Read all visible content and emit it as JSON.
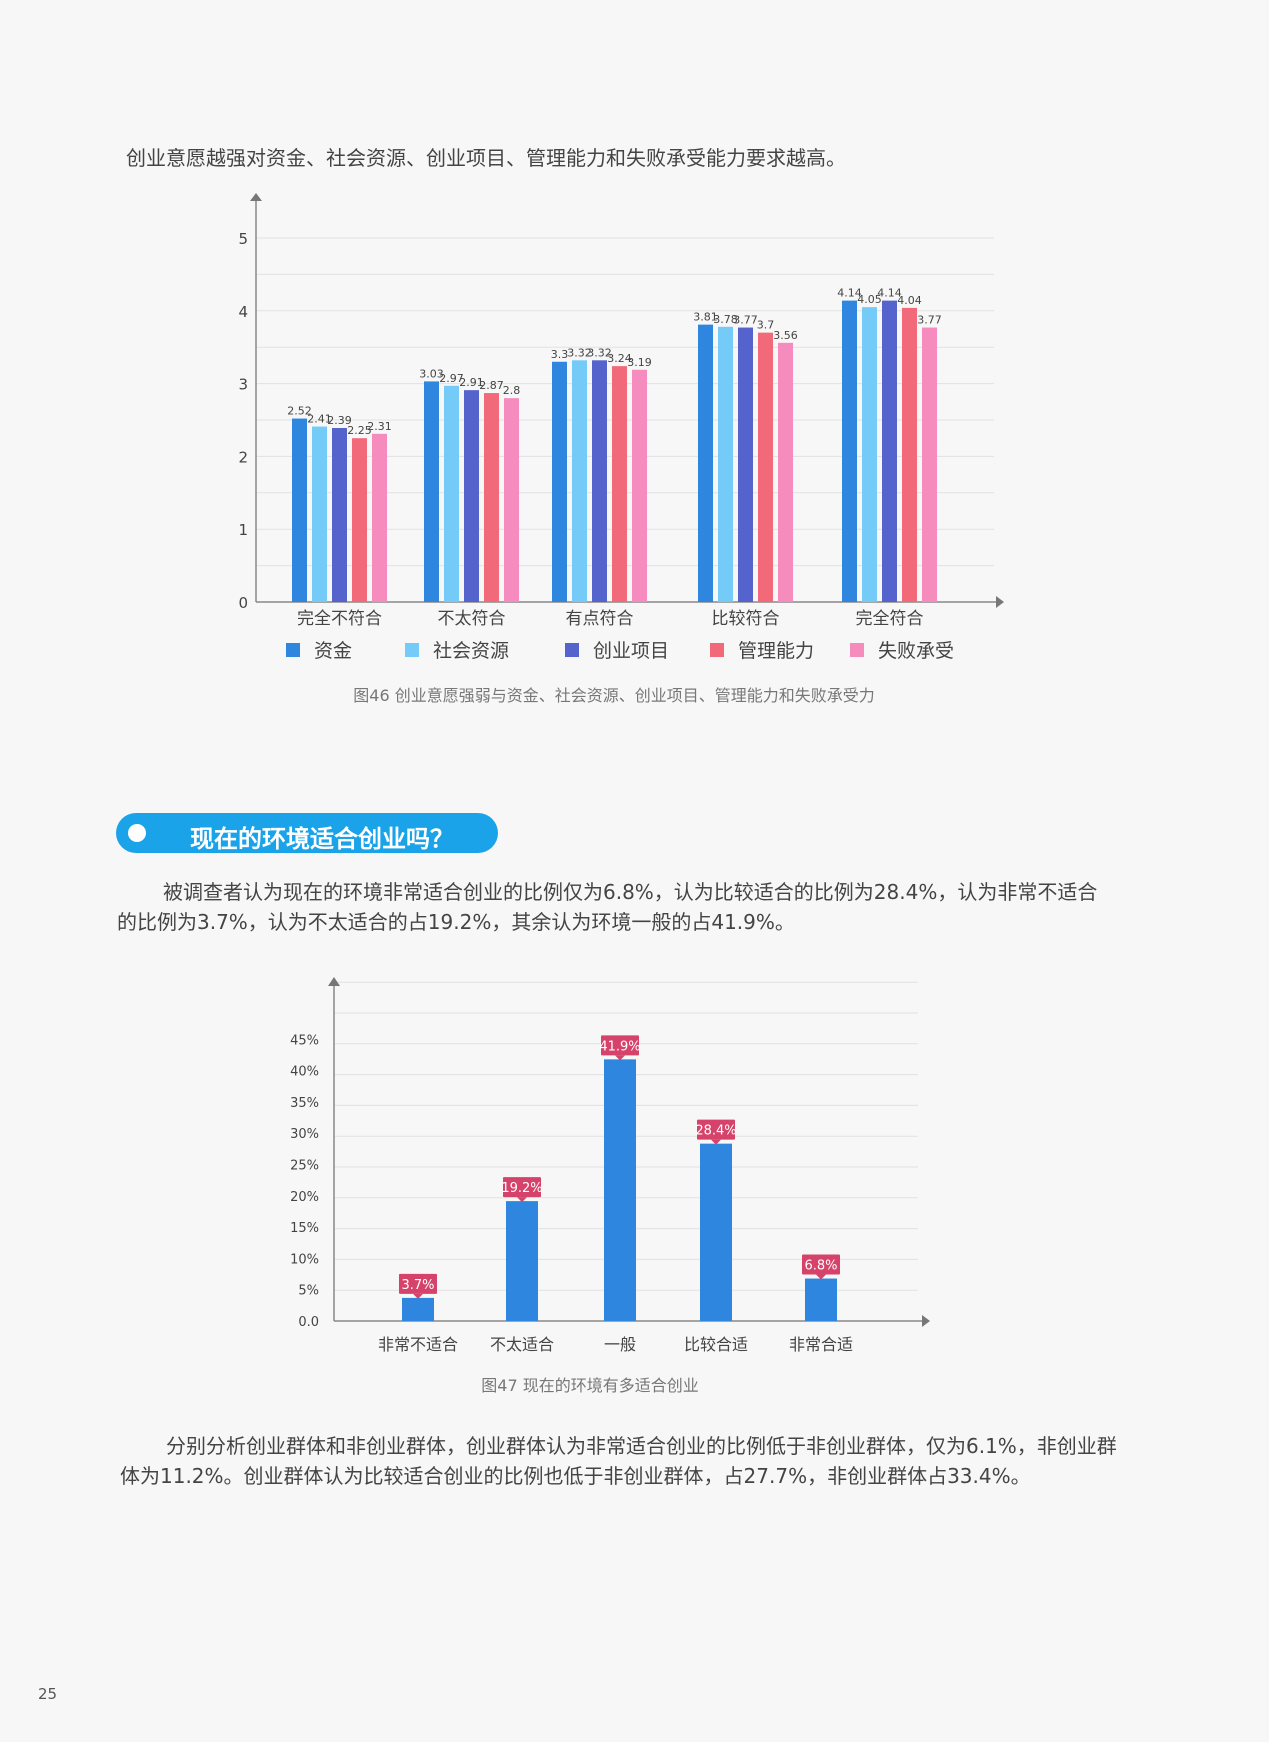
{
  "intro_text": "创业意愿越强对资金、社会资源、创业项目、管理能力和失败承受能力要求越高。",
  "section_heading": "现在的环境适合创业吗？",
  "paragraph2": "被调查者认为现在的环境非常适合创业的比例仅为6.8%，认为比较适合的比例为28.4%，认为非常不适合的比例为3.7%，认为不太适合的占19.2%，其余认为环境一般的占41.9%。",
  "paragraph3": "分别分析创业群体和非创业群体，创业群体认为非常适合创业的比例低于非创业群体，仅为6.1%，非创业群体为11.2%。创业群体认为比较适合创业的比例也低于非创业群体，占27.7%，非创业群体占33.4%。",
  "page_number": "25",
  "chart_data": [
    {
      "type": "bar",
      "caption": "图46 创业意愿强弱与资金、社会资源、创业项目、管理能力和失败承受力",
      "categories": [
        "完全不符合",
        "不太符合",
        "有点符合",
        "比较符合",
        "完全符合"
      ],
      "yticks": [
        "0",
        "1",
        "2",
        "3",
        "4",
        "5"
      ],
      "ylim": [
        0,
        5
      ],
      "grid": true,
      "legend_position": "bottom",
      "series": [
        {
          "name": "资金",
          "color": "#2e86de",
          "values": [
            2.52,
            3.03,
            3.3,
            3.81,
            4.14
          ]
        },
        {
          "name": "社会资源",
          "color": "#74cbf7",
          "values": [
            2.41,
            2.97,
            3.32,
            3.78,
            4.05
          ]
        },
        {
          "name": "创业项目",
          "color": "#5563cc",
          "values": [
            2.39,
            2.91,
            3.32,
            3.77,
            4.14
          ]
        },
        {
          "name": "管理能力",
          "color": "#f26a7a",
          "values": [
            2.25,
            2.87,
            3.24,
            3.7,
            4.04
          ]
        },
        {
          "name": "失败承受",
          "color": "#f68bbd",
          "values": [
            2.31,
            2.8,
            3.19,
            3.56,
            3.77
          ]
        }
      ]
    },
    {
      "type": "bar",
      "caption": "图47 现在的环境有多适合创业",
      "categories": [
        "非常不适合",
        "不太适合",
        "一般",
        "比较合适",
        "非常合适"
      ],
      "values": [
        3.7,
        19.2,
        41.9,
        28.4,
        6.8
      ],
      "value_labels": [
        "3.7%",
        "19.2%",
        "41.9%",
        "28.4%",
        "6.8%"
      ],
      "yticks": [
        "0.0",
        "5%",
        "10%",
        "15%",
        "20%",
        "25%",
        "30%",
        "35%",
        "40%",
        "45%"
      ],
      "ylim": [
        0,
        45
      ],
      "grid": true,
      "bar_color": "#2e86de",
      "label_color": "#d6436a"
    }
  ]
}
